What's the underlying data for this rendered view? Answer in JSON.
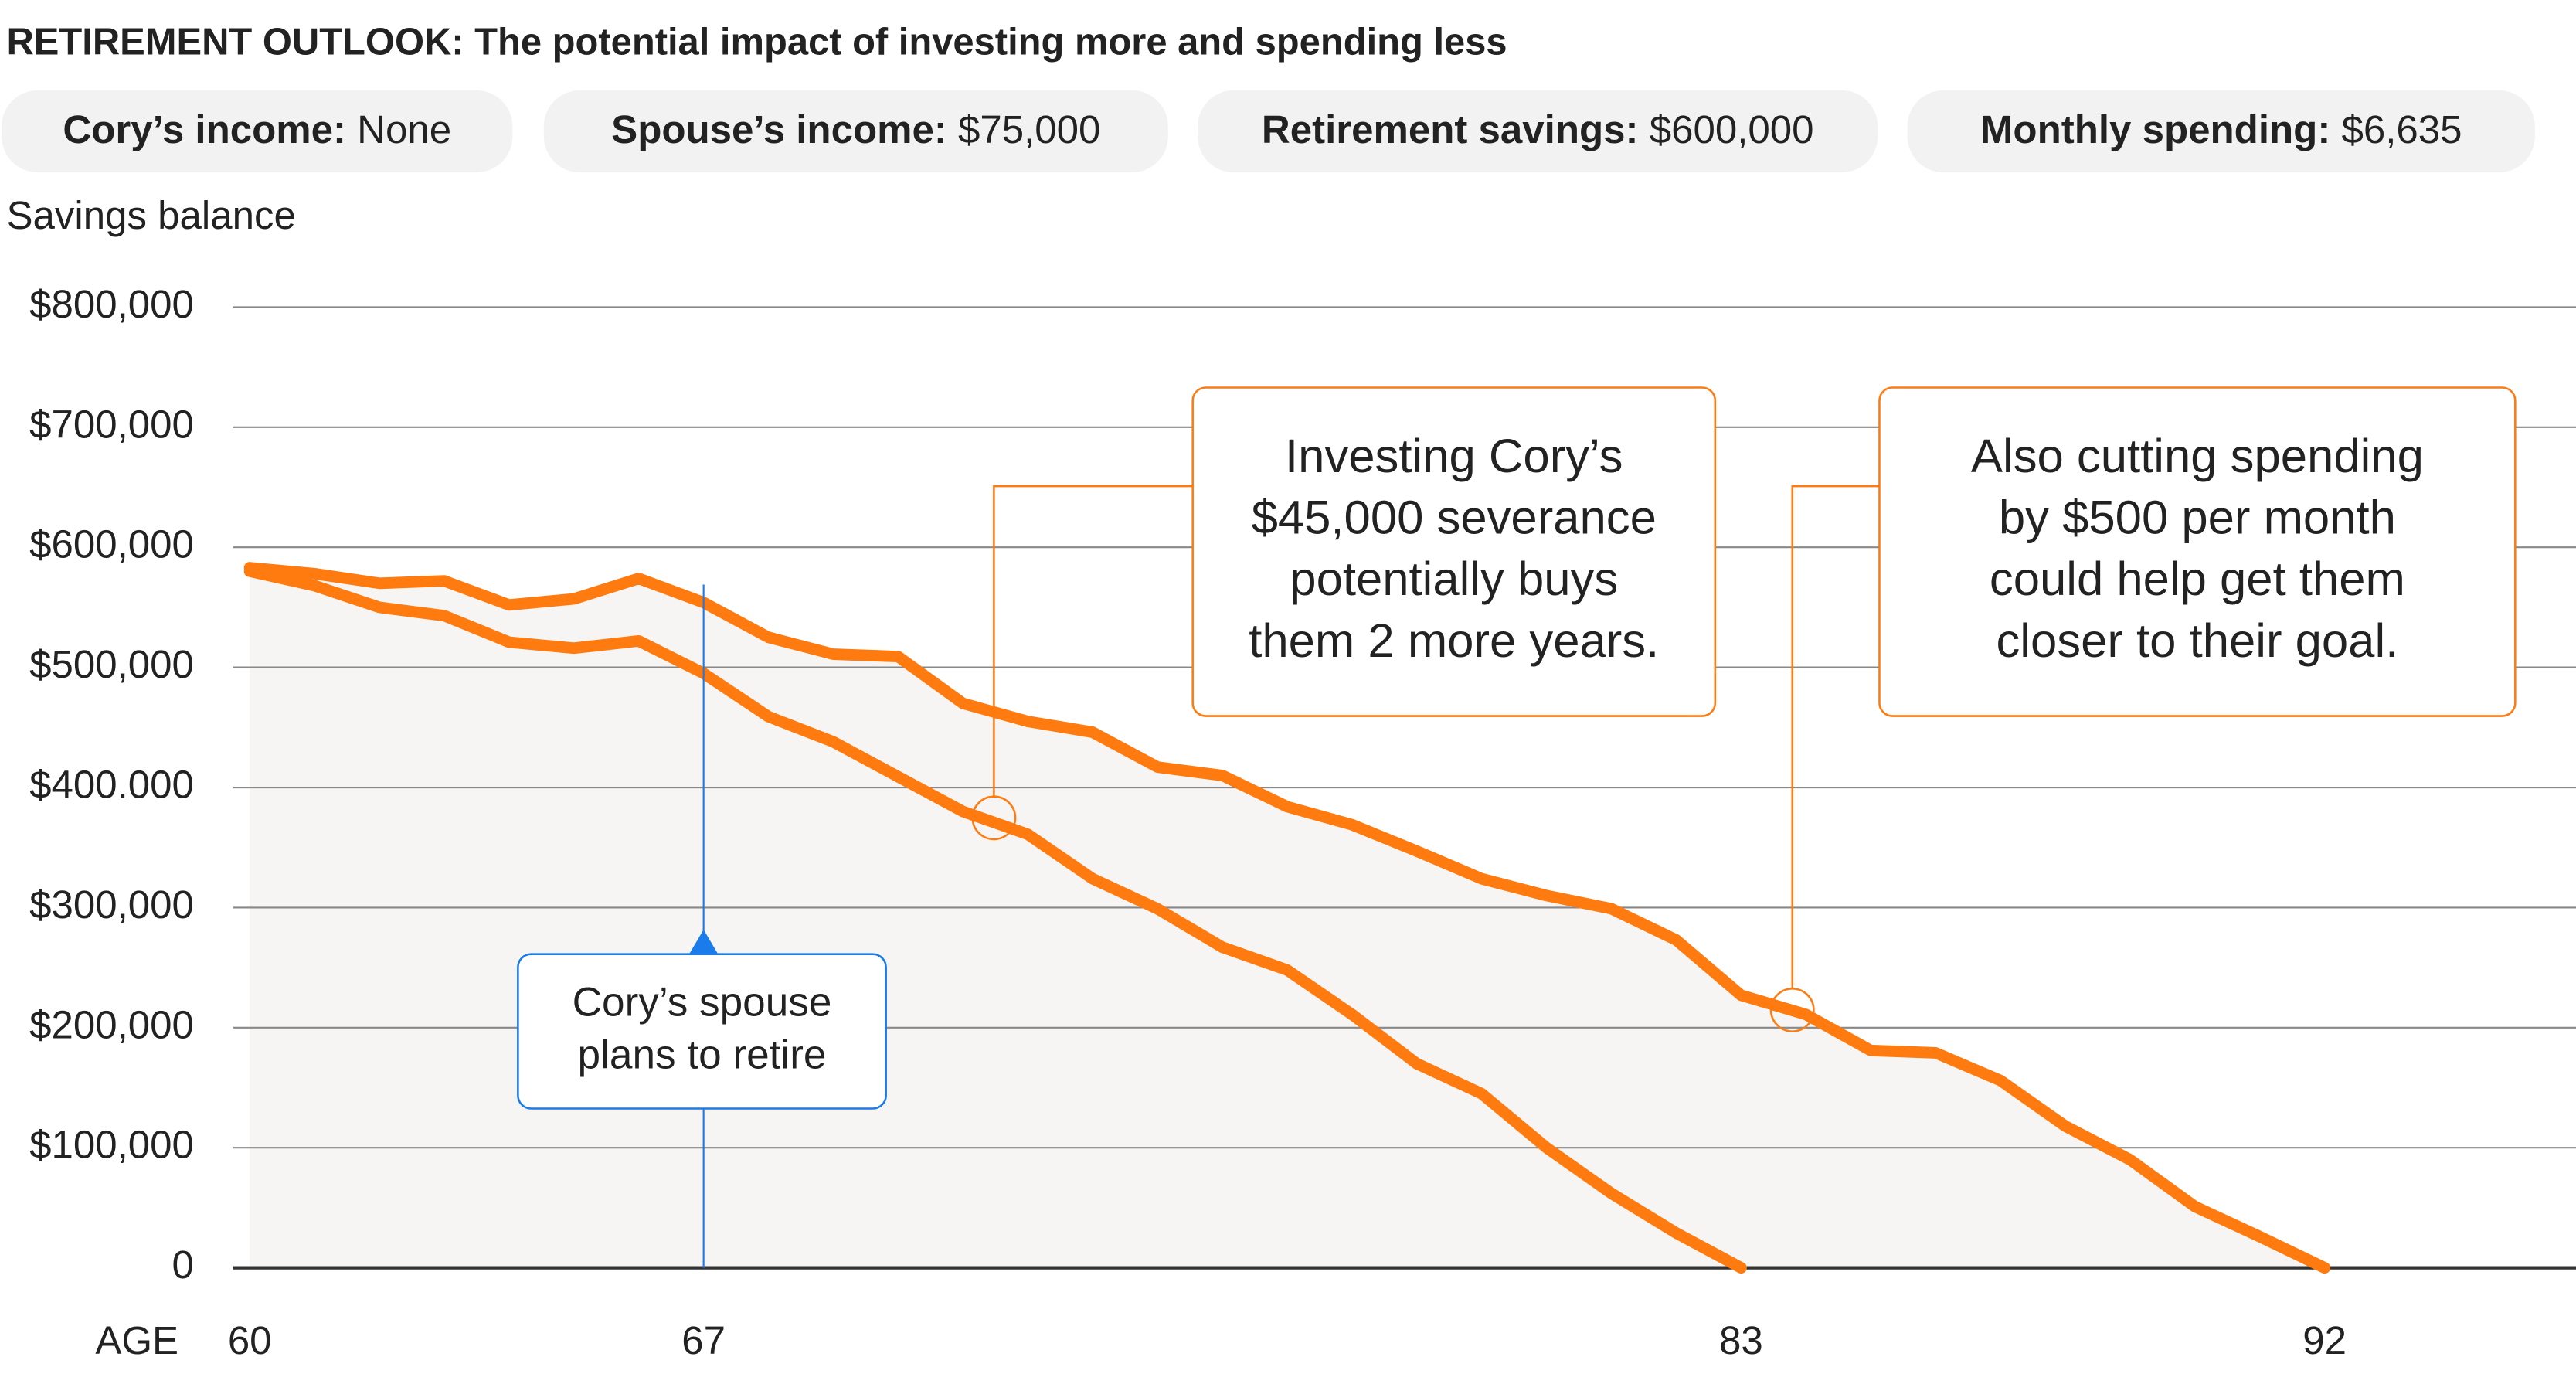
{
  "chart_data": {
    "type": "line",
    "title": "RETIREMENT OUTLOOK: The potential impact of investing more and spending less",
    "info": [
      {
        "label": "Cory’s income:",
        "value": "None"
      },
      {
        "label": "Spouse’s income:",
        "value": "$75,000"
      },
      {
        "label": "Retirement savings:",
        "value": "$600,000"
      },
      {
        "label": "Monthly spending:",
        "value": "$6,635"
      }
    ],
    "ylabel": "Savings balance",
    "xlabel": "AGE",
    "x": [
      60,
      61,
      62,
      63,
      64,
      65,
      66,
      67,
      68,
      69,
      70,
      71,
      72,
      73,
      74,
      75,
      76,
      77,
      78,
      79,
      80,
      81,
      82,
      83,
      84,
      85,
      86,
      87,
      88,
      89,
      90,
      91,
      92
    ],
    "series": [
      {
        "color": "#ff7a0f",
        "values": [
          583000,
          578000,
          570000,
          572000,
          552000,
          557000,
          574000,
          554000,
          525000,
          511000,
          509000,
          470000,
          455000,
          446000,
          417000,
          410000,
          384000,
          369000,
          347000,
          324000,
          310000,
          299000,
          273000,
          227000,
          211000,
          181000,
          179000,
          156000,
          118000,
          90000,
          51000,
          26000,
          0
        ]
      },
      {
        "color": "#ff7a0f",
        "values": [
          580000,
          568000,
          550000,
          543000,
          521000,
          516000,
          522000,
          495000,
          459000,
          438000,
          409000,
          380000,
          361000,
          324000,
          299000,
          267000,
          248000,
          211000,
          170000,
          145000,
          100000,
          62000,
          29000,
          0,
          null,
          null,
          null,
          null,
          null,
          null,
          null,
          null,
          null
        ]
      }
    ],
    "area_color": "#f6f5f3",
    "xlim": [
      60,
      92
    ],
    "xticks": [
      60,
      67,
      83,
      92
    ],
    "ylim": [
      0,
      800000
    ],
    "yticks": [
      0,
      {
        "value": 100000,
        "label": "$100,000"
      },
      {
        "value": 200000,
        "label": "$200,000"
      },
      {
        "value": 300000,
        "label": "$300,000"
      },
      {
        "value": 400000,
        "label": "$400.000"
      },
      {
        "value": 500000,
        "label": "$500,000"
      },
      {
        "value": 600000,
        "label": "$600,000"
      },
      {
        "value": 700000,
        "label": "$700,000"
      },
      {
        "value": 800000,
        "label": "$800,000"
      }
    ],
    "grid": true,
    "annotations": [
      {
        "lines": [
          "Investing Cory’s",
          "$45,000 severance",
          "potentially buys",
          "them 2 more years."
        ],
        "color": "#ff7a0f"
      },
      {
        "lines": [
          "Also cutting spending",
          "by $500 per month",
          "could help get them",
          "closer to their goal."
        ],
        "color": "#ff7a0f"
      },
      {
        "lines": [
          "Cory’s spouse",
          "plans to retire"
        ],
        "color": "#1a7bea"
      }
    ]
  }
}
